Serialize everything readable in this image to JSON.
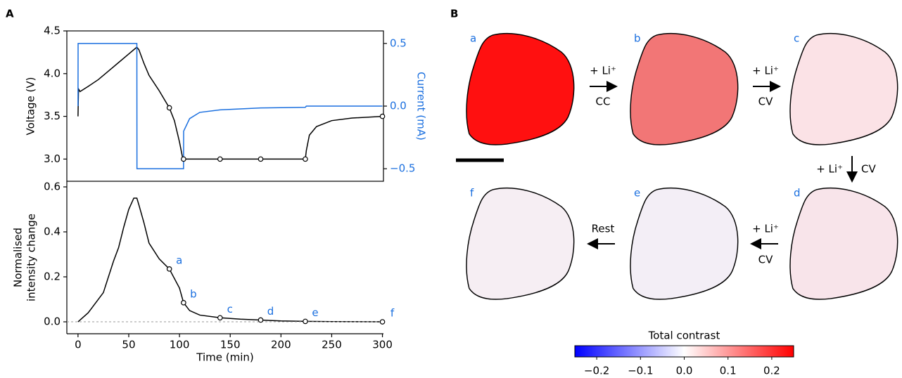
{
  "chart_data": [
    {
      "type": "line",
      "panel_label": "A",
      "ylabel": "Voltage (V)",
      "y2label": "Current (mA)",
      "xlim": [
        -11,
        301
      ],
      "ylim": [
        2.74,
        4.5
      ],
      "y2lim": [
        -0.6,
        0.6
      ],
      "yticks": [
        {
          "value": 3,
          "label": "3.0"
        },
        3.5,
        {
          "value": 4,
          "label": "4.0"
        },
        4.5
      ],
      "y2ticks": [
        {
          "value": -0.5,
          "label": "−0.5"
        },
        {
          "value": 0,
          "label": "0.0"
        },
        0.5
      ],
      "y2color": "#1a6fdf",
      "series": [
        {
          "color": "#000000",
          "x": [
            0,
            0.5,
            2,
            10,
            20,
            30,
            40,
            50,
            55,
            58,
            60,
            65,
            70,
            80,
            90,
            95,
            100,
            103,
            104,
            110,
            140,
            180,
            224,
            225,
            228,
            235,
            250,
            270,
            300
          ],
          "values": [
            3.5,
            3.82,
            3.79,
            3.85,
            3.93,
            4.03,
            4.13,
            4.23,
            4.28,
            4.31,
            4.28,
            4.12,
            3.98,
            3.8,
            3.6,
            3.45,
            3.2,
            3.02,
            3.0,
            3.0,
            3.0,
            3.0,
            3.0,
            3.1,
            3.28,
            3.38,
            3.45,
            3.48,
            3.5
          ]
        },
        {
          "color": "#000000",
          "marker": "circle",
          "x": [
            90,
            104,
            140,
            180,
            224,
            300
          ],
          "values": [
            3.6,
            3.0,
            3.0,
            3.0,
            3.0,
            3.5
          ]
        },
        {
          "color": "#1a6fdf",
          "axis": "y2",
          "x": [
            0,
            0.1,
            58,
            58.1,
            104,
            104.1,
            110,
            120,
            140,
            180,
            224,
            225,
            300
          ],
          "values": [
            0,
            0.5,
            0.5,
            -0.5,
            -0.5,
            -0.2,
            -0.1,
            -0.05,
            -0.03,
            -0.015,
            -0.01,
            0,
            0
          ]
        }
      ]
    },
    {
      "type": "line",
      "xlabel": "Time (min)",
      "ylabel": [
        "Normalised",
        "intensity change"
      ],
      "xlim": [
        -11,
        301
      ],
      "ylim": [
        -0.053,
        0.625
      ],
      "xticks": [
        0,
        50,
        100,
        150,
        200,
        250,
        300
      ],
      "yticks": [
        {
          "value": 0,
          "label": "0.0"
        },
        0.2,
        0.4,
        0.6
      ],
      "hline": {
        "value": 0,
        "color": "#999999",
        "style": "dashed"
      },
      "series": [
        {
          "color": "#000000",
          "x": [
            0,
            10,
            20,
            25,
            30,
            35,
            40,
            45,
            50,
            55,
            58,
            60,
            65,
            70,
            80,
            90,
            100,
            104,
            110,
            120,
            140,
            160,
            180,
            200,
            224,
            250,
            300
          ],
          "values": [
            0,
            0.04,
            0.1,
            0.13,
            0.2,
            0.27,
            0.33,
            0.42,
            0.5,
            0.55,
            0.55,
            0.52,
            0.44,
            0.35,
            0.28,
            0.235,
            0.15,
            0.085,
            0.05,
            0.03,
            0.018,
            0.012,
            0.008,
            0.004,
            0.002,
            0.001,
            0
          ]
        },
        {
          "color": "#000000",
          "marker": "circle",
          "label_color": "#1a6fdf",
          "x": [
            90,
            104,
            140,
            180,
            224,
            300
          ],
          "values": [
            0.235,
            0.085,
            0.018,
            0.008,
            0.002,
            0
          ],
          "point_labels": [
            "a",
            "b",
            "c",
            "d",
            "e",
            "f"
          ]
        }
      ]
    },
    {
      "type": "colorbar",
      "title": "Total contrast",
      "xlim": [
        -0.25,
        0.25
      ],
      "colors": [
        "#0000ff",
        "#ffffff",
        "#ff0000"
      ],
      "xticks": [
        {
          "value": -0.2,
          "label": "−0.2"
        },
        {
          "value": -0.1,
          "label": "−0.1"
        },
        {
          "value": 0,
          "label": "0.0"
        },
        0.1,
        0.2
      ]
    }
  ],
  "panel_b": {
    "label": "B",
    "images": [
      {
        "label": "a",
        "color": "#ff1010"
      },
      {
        "label": "b",
        "color": "#f27676"
      },
      {
        "label": "c",
        "color": "#fbe2e6"
      },
      {
        "label": "d",
        "color": "#f8e4ea"
      },
      {
        "label": "e",
        "color": "#f3eef6"
      },
      {
        "label": "f",
        "color": "#f6eef3"
      }
    ],
    "steps": [
      {
        "top": "+ Li⁺",
        "bottom": "CC"
      },
      {
        "top": "+ Li⁺",
        "bottom": "CV"
      },
      {
        "left": "+ Li⁺",
        "right": "CV"
      },
      {
        "top": "+ Li⁺",
        "bottom": "CV"
      },
      {
        "top": "Rest"
      }
    ]
  }
}
